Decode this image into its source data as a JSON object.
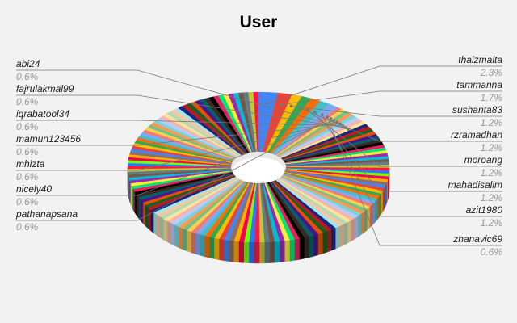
{
  "chart_data": {
    "type": "pie",
    "style": "3d-donut",
    "title": "User",
    "legend": "none",
    "labeled_slices": [
      {
        "name": "thaizmaita",
        "value_label": "2.3%",
        "value": 2.3,
        "color": "#4285f4"
      },
      {
        "name": "tammanna",
        "value_label": "1.7%",
        "value": 1.7,
        "color": "#ea4335"
      },
      {
        "name": "sushanta83",
        "value_label": "1.2%",
        "value": 1.2,
        "color": "#fbbc04"
      },
      {
        "name": "rzramadhan",
        "value_label": "1.2%",
        "value": 1.2,
        "color": "#34a853"
      },
      {
        "name": "moroang",
        "value_label": "1.2%",
        "value": 1.2,
        "color": "#ff6d01"
      },
      {
        "name": "mahadisalim",
        "value_label": "1.2%",
        "value": 1.2,
        "color": "#46bdc6"
      },
      {
        "name": "azit1980",
        "value_label": "1.2%",
        "value": 1.2,
        "color": "#7baaf7"
      },
      {
        "name": "zhanavic69",
        "value_label": "0.6%",
        "value": 0.6,
        "color": "#f07b72"
      },
      {
        "name": "pathanapsana",
        "value_label": "0.6%",
        "value": 0.6,
        "color": "#fcd04f"
      },
      {
        "name": "nicely40",
        "value_label": "0.6%",
        "value": 0.6,
        "color": "#71c287"
      },
      {
        "name": "mhizta",
        "value_label": "0.6%",
        "value": 0.6,
        "color": "#ff994d"
      },
      {
        "name": "mamun123456",
        "value_label": "0.6%",
        "value": 0.6,
        "color": "#7ed1d7"
      },
      {
        "name": "iqrabatool34",
        "value_label": "0.6%",
        "value": 0.6,
        "color": "#b3cefb"
      },
      {
        "name": "fajrulakmal99",
        "value_label": "0.6%",
        "value": 0.6,
        "color": "#f7b4ae"
      },
      {
        "name": "abi24",
        "value_label": "0.6%",
        "value": 0.6,
        "color": "#fde49b"
      }
    ],
    "unlabeled_slices": {
      "count": 137,
      "value_each": 0.6
    },
    "palette": [
      "#4285f4",
      "#ea4335",
      "#fbbc04",
      "#34a853",
      "#ff6d01",
      "#46bdc6",
      "#7baaf7",
      "#f07b72",
      "#fcd04f",
      "#71c287",
      "#ff994d",
      "#7ed1d7",
      "#b3cefb",
      "#f7b4ae",
      "#fde49b",
      "#aedcba",
      "#ffc599",
      "#a1e6ec",
      "#1a237e",
      "#b71c1c",
      "#1b5e20",
      "#e65100",
      "#4a148c",
      "#006064",
      "#3e2723",
      "#000000",
      "#e91e63",
      "#00e676",
      "#ffeb3b",
      "#9c27b0",
      "#00bcd4",
      "#795548",
      "#607d8b",
      "#c0ca33",
      "#ff1744",
      "#2979ff",
      "#76ff03",
      "#f50057",
      "#ffab00",
      "#8d6e63"
    ]
  }
}
